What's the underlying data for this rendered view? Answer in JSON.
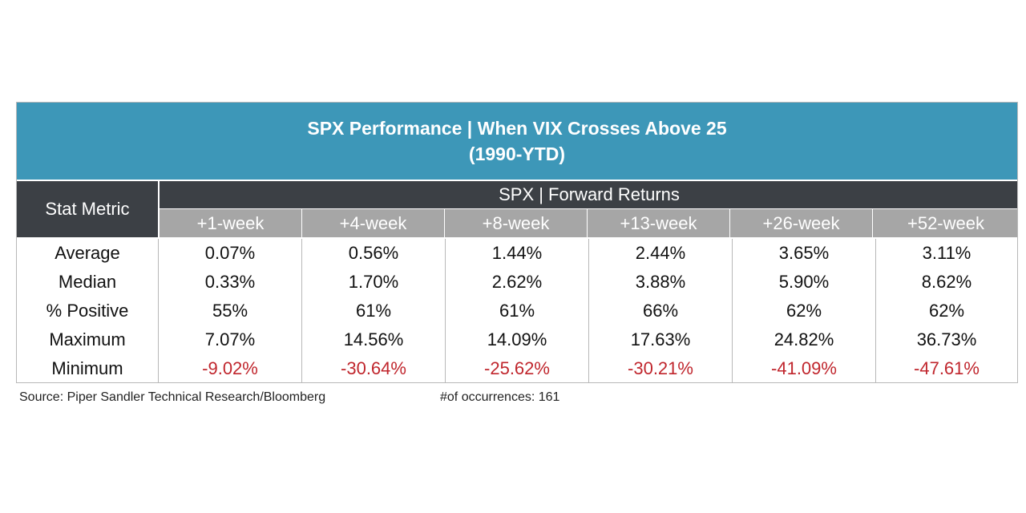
{
  "title": {
    "line1": "SPX Performance | When VIX Crosses Above 25",
    "line2": "(1990-YTD)"
  },
  "header": {
    "stat_metric": "Stat Metric",
    "group": "SPX | Forward Returns"
  },
  "colors": {
    "title_band": "#3d97b8",
    "dark_header": "#3c4045",
    "sub_header": "#a6a6a6",
    "negative": "#c0262d"
  },
  "chart_data": {
    "type": "table",
    "columns": [
      "+1-week",
      "+4-week",
      "+8-week",
      "+13-week",
      "+26-week",
      "+52-week"
    ],
    "rows": [
      {
        "label": "Average",
        "values": [
          "0.07%",
          "0.56%",
          "1.44%",
          "2.44%",
          "3.65%",
          "3.11%"
        ],
        "negative": false
      },
      {
        "label": "Median",
        "values": [
          "0.33%",
          "1.70%",
          "2.62%",
          "3.88%",
          "5.90%",
          "8.62%"
        ],
        "negative": false
      },
      {
        "label": "% Positive",
        "values": [
          "55%",
          "61%",
          "61%",
          "66%",
          "62%",
          "62%"
        ],
        "negative": false
      },
      {
        "label": "Maximum",
        "values": [
          "7.07%",
          "14.56%",
          "14.09%",
          "17.63%",
          "24.82%",
          "36.73%"
        ],
        "negative": false
      },
      {
        "label": "Minimum",
        "values": [
          "-9.02%",
          "-30.64%",
          "-25.62%",
          "-30.21%",
          "-41.09%",
          "-47.61%"
        ],
        "negative": true
      }
    ]
  },
  "footer": {
    "source": "Source: Piper Sandler Technical Research/Bloomberg",
    "occurrences": "#of occurrences: 161"
  }
}
